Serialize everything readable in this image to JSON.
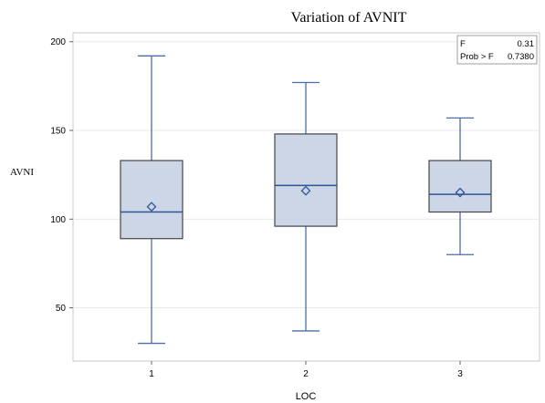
{
  "chart_data": {
    "type": "box",
    "title": "Variation of  AVNIT",
    "xlabel": "LOC",
    "ylabel": "AVNI",
    "ylim": [
      20,
      205
    ],
    "yticks": [
      50,
      100,
      150,
      200
    ],
    "grid": "horizontal",
    "categories": [
      "1",
      "2",
      "3"
    ],
    "boxes": [
      {
        "category": "1",
        "min": 30,
        "q1": 89,
        "median": 104,
        "q3": 133,
        "max": 192,
        "mean": 107
      },
      {
        "category": "2",
        "min": 37,
        "q1": 96,
        "median": 119,
        "q3": 148,
        "max": 177,
        "mean": 116
      },
      {
        "category": "3",
        "min": 80,
        "q1": 104,
        "median": 114,
        "q3": 133,
        "max": 157,
        "mean": 115
      }
    ],
    "inset_stats": {
      "placement": "top-right",
      "rows": [
        {
          "label": "F",
          "value": "0.31"
        },
        {
          "label": "Prob > F",
          "value": "0.7380"
        }
      ]
    },
    "colors": {
      "box_fill": "#ccd6e6",
      "box_edge": "#454545",
      "whisker": "#4b6ea8",
      "median": "#2f5597",
      "mean_marker": "#2f5597",
      "grid": "#e8e8e8",
      "frame": "#c8c8c8"
    }
  }
}
